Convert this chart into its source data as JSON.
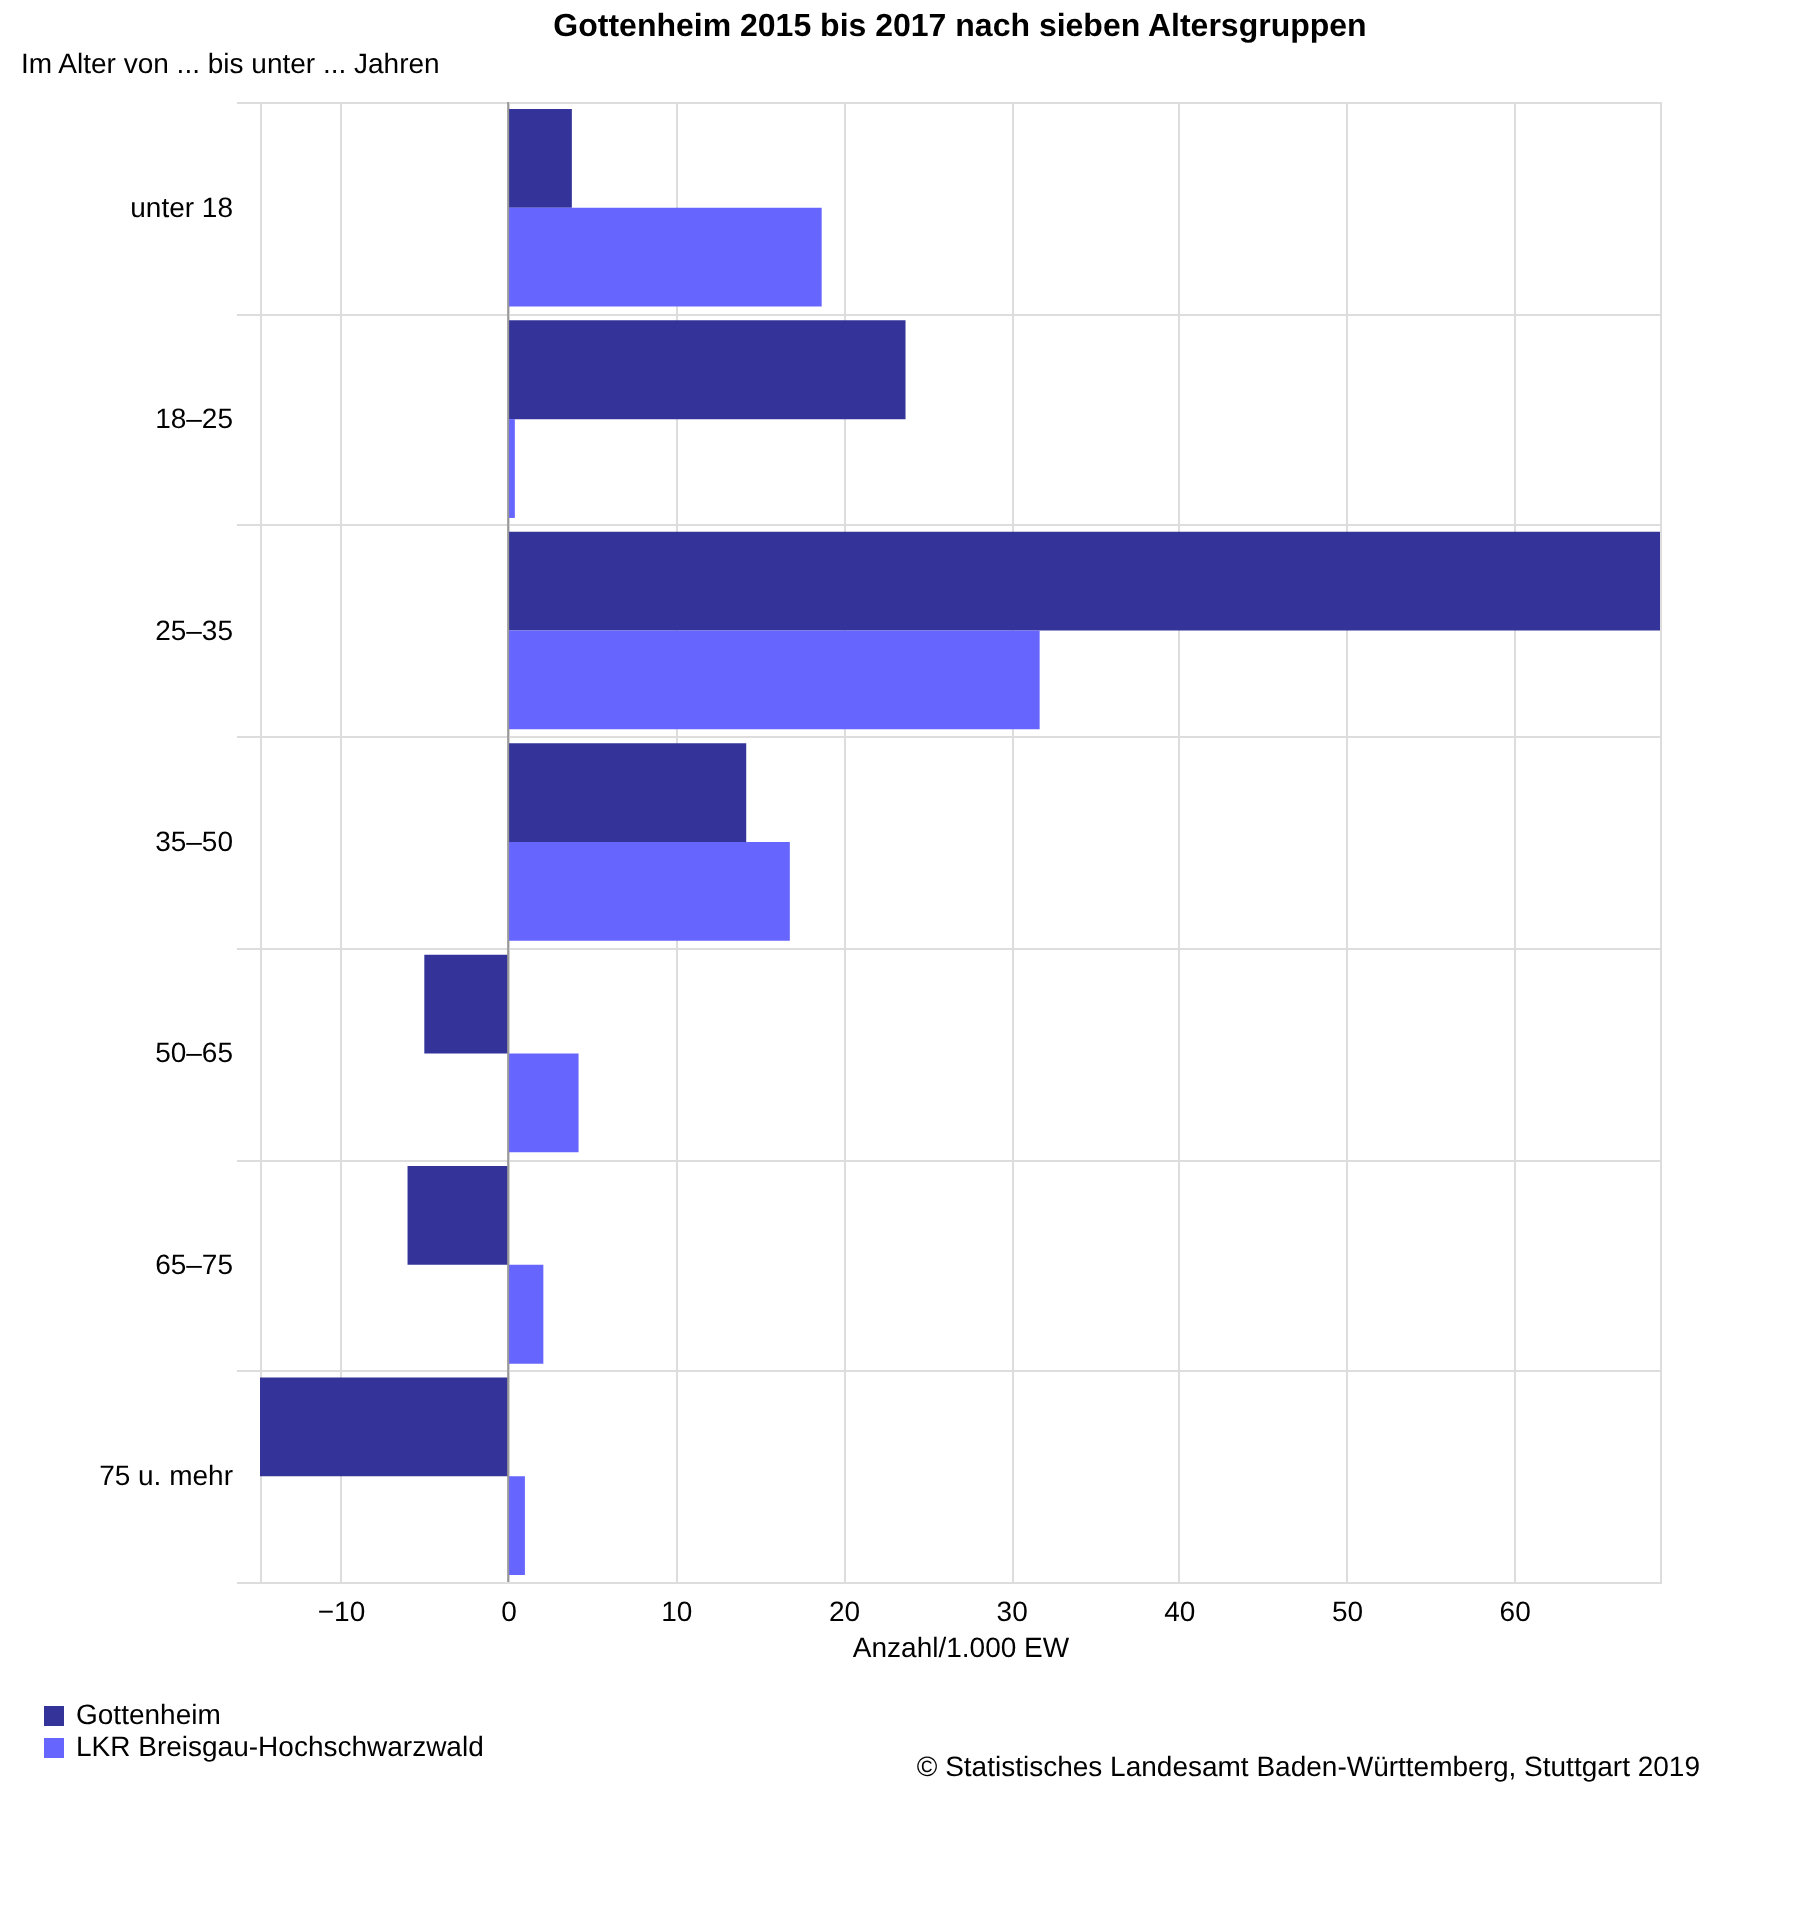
{
  "chart_data": {
    "type": "bar",
    "orientation": "horizontal",
    "title": "Gottenheim 2015 bis 2017 nach sieben Altersgruppen",
    "ylabel": "Im Alter von ... bis unter ... Jahren",
    "xlabel": "Anzahl/1.000 EW",
    "categories": [
      "unter 18",
      "18–25",
      "25–35",
      "35–50",
      "50–65",
      "65–75",
      "75 u. mehr"
    ],
    "series": [
      {
        "name": "Gottenheim",
        "color": "#333399",
        "values": [
          3.8,
          23.7,
          68.7,
          14.2,
          -5.0,
          -6.0,
          -14.8
        ]
      },
      {
        "name": "LKR Breisgau-Hochschwarzwald",
        "color": "#6666ff",
        "values": [
          18.7,
          0.4,
          31.7,
          16.8,
          4.2,
          2.1,
          1.0
        ]
      }
    ],
    "xlim": [
      -14.8,
      68.7
    ],
    "xticks": [
      -10,
      0,
      10,
      20,
      30,
      40,
      50,
      60
    ],
    "grid": true,
    "legend": "bottom left",
    "annotations": [
      "© Statistisches Landesamt Baden-Württemberg, Stuttgart 2019"
    ]
  }
}
